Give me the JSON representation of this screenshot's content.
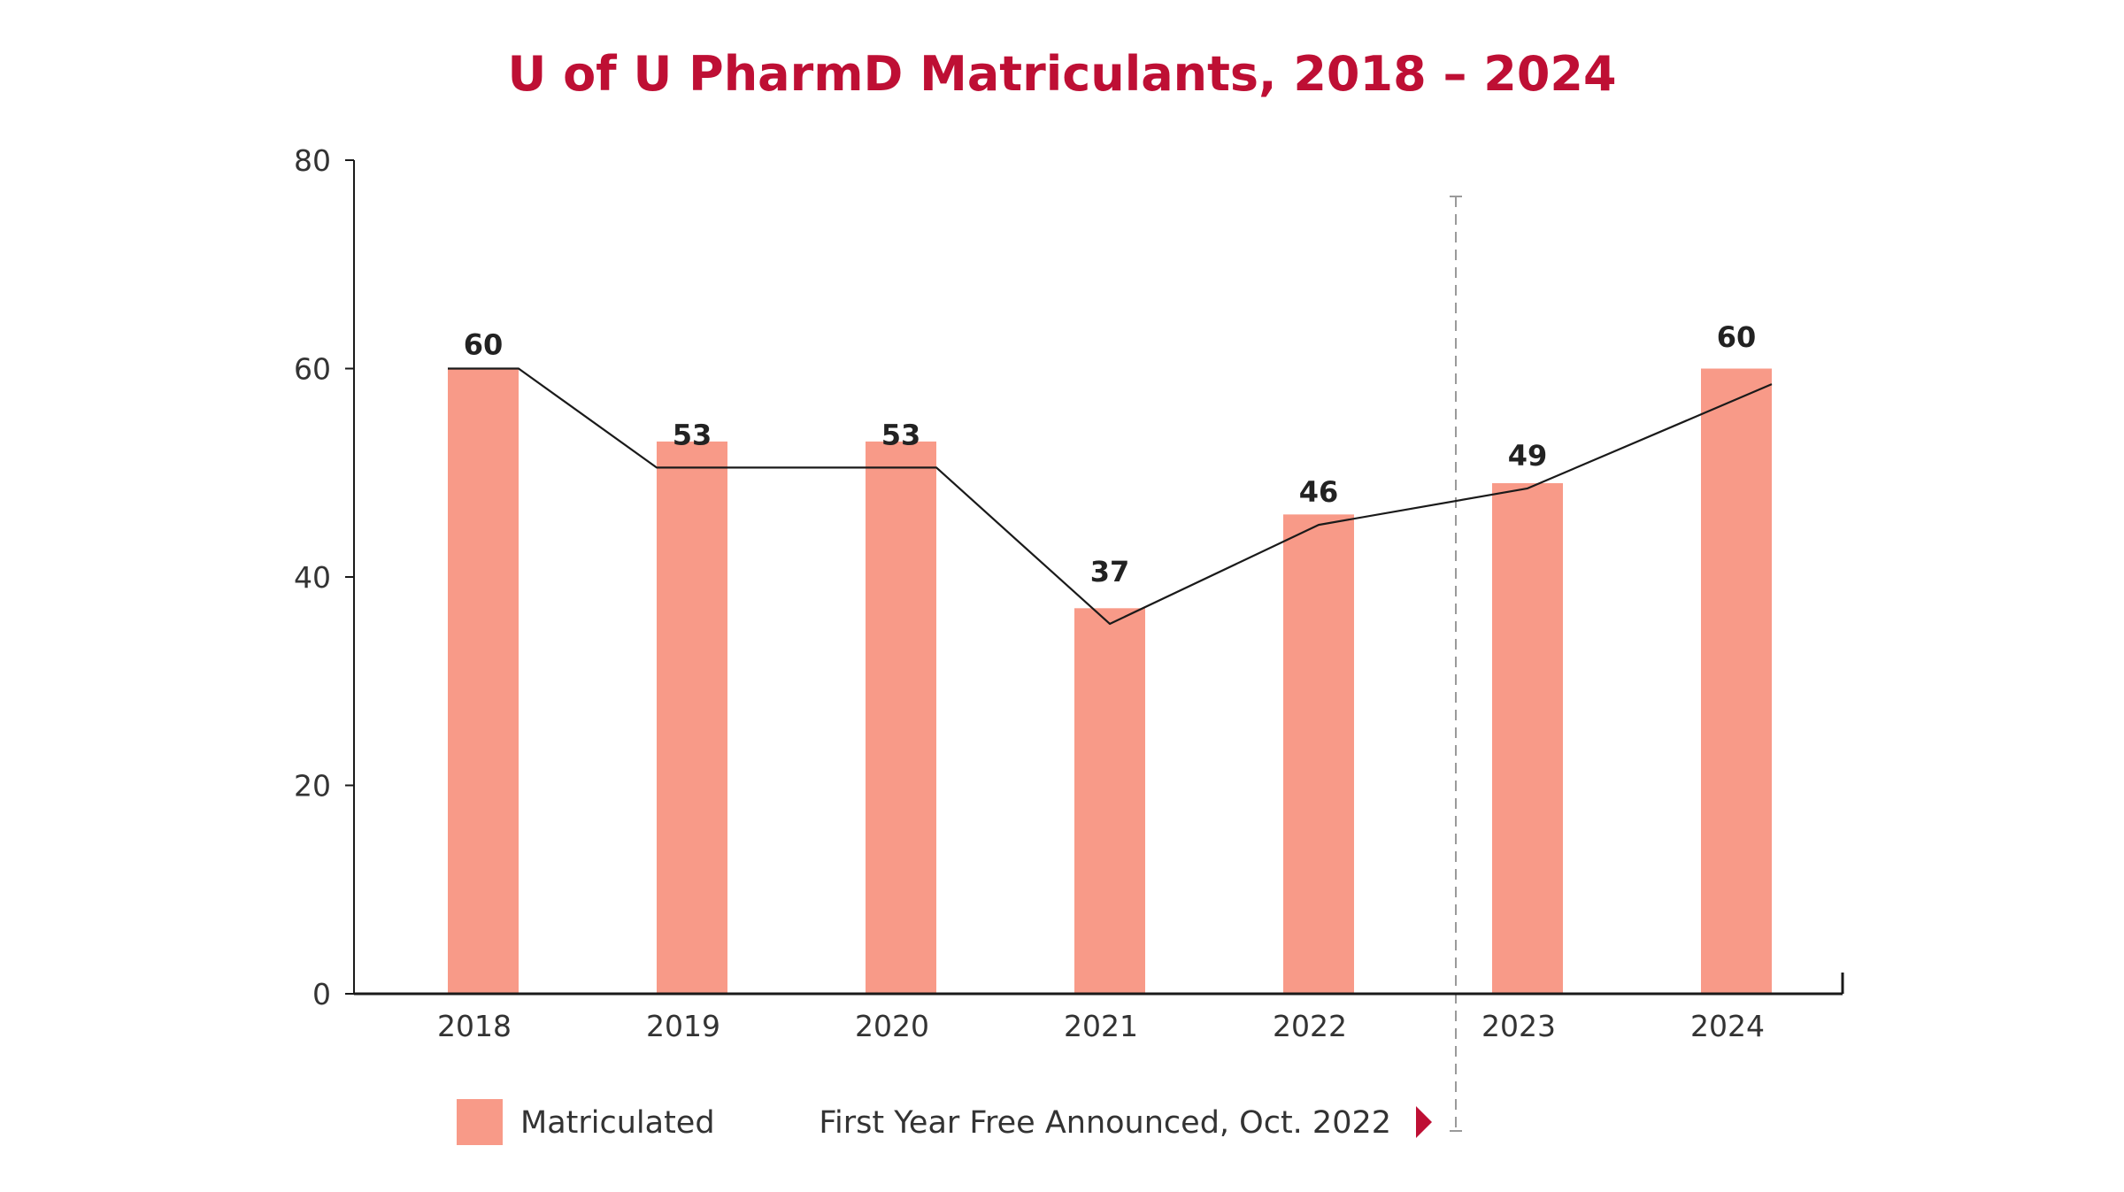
{
  "chart_data": {
    "type": "bar",
    "title": "U of U PharmD Matriculants, 2018 – 2024",
    "categories": [
      "2018",
      "2019",
      "2020",
      "2021",
      "2022",
      "2023",
      "2024"
    ],
    "series": [
      {
        "name": "Matriculated",
        "values": [
          60,
          53,
          53,
          37,
          46,
          49,
          60
        ]
      }
    ],
    "line_values": [
      60,
      50.5,
      50.5,
      35.5,
      45,
      48.5,
      58.5
    ],
    "data_labels": [
      "60",
      "53",
      "53",
      "37",
      "46",
      "49",
      "60"
    ],
    "ylim": [
      0,
      80
    ],
    "yticks": [
      "0",
      "20",
      "40",
      "60",
      "80"
    ],
    "xlabel": "",
    "ylabel": "",
    "grid": false,
    "legend": "bottom-left",
    "annotation": {
      "label": "First Year Free Announced, Oct. 2022",
      "position_between": [
        "2022",
        "2023"
      ]
    }
  },
  "colors": {
    "bar": "#F89A88",
    "title": "#BE0F34",
    "marker": "#BE0F34",
    "line": "#1a1a1a",
    "axis": "#1a1a1a",
    "divider": "#9a9a9a"
  },
  "icons": {
    "annotation_marker": "triangle-right-icon"
  }
}
